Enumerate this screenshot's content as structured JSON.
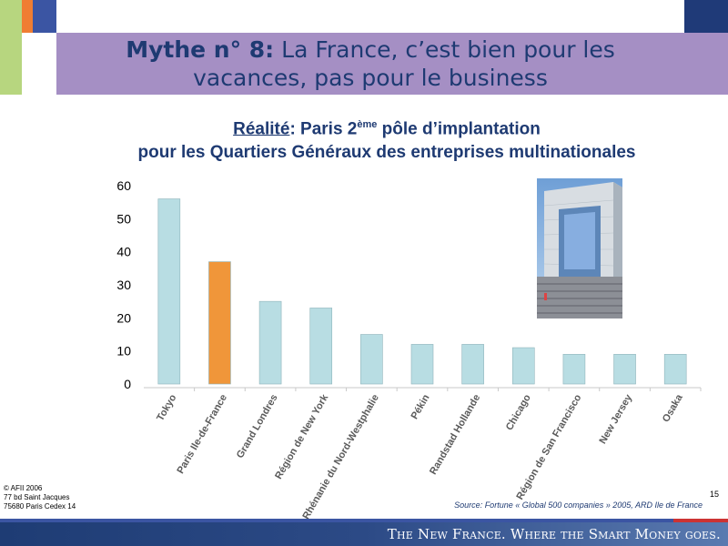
{
  "header": {
    "title_bold": "Mythe n° 8:",
    "title_rest": "La France, c’est bien pour les",
    "title_line2": "vacances, pas pour le business"
  },
  "subtitle": {
    "underlined": "Réalité",
    "line1_a": ": Paris 2",
    "superscript": "ème",
    "line1_b": " pôle d’implantation",
    "line2": "pour les Quartiers Généraux des entreprises multinationales"
  },
  "chart_data": {
    "type": "bar",
    "categories": [
      "Tokyo",
      "Paris Ile-de-France",
      "Grand Londres",
      "Région de New York",
      "Rhénanie du Nord-Westphalie",
      "Pékin",
      "Randstad Hollande",
      "Chicago",
      "Région de San Francisco",
      "New Jersey",
      "Osaka"
    ],
    "values": [
      56,
      37,
      25,
      23,
      15,
      12,
      12,
      11,
      9,
      9,
      9
    ],
    "ylim": [
      0,
      60
    ],
    "yticks": [
      "0",
      "10",
      "20",
      "30",
      "40",
      "50",
      "60"
    ],
    "highlight_index": 1,
    "colors": {
      "default": "#b8dde3",
      "highlight": "#f0963a",
      "stroke": "#8fb4bb"
    },
    "grid": false,
    "title": "",
    "xlabel": "",
    "ylabel": ""
  },
  "photo": {
    "icon": "grande-arche-photo"
  },
  "footer": {
    "copyright_lines": [
      "© AFII 2006",
      "77 bd Saint Jacques",
      "75680 Paris Cedex 14"
    ],
    "source": "Source: Fortune « Global 500 companies » 2005, ARD Ile de France",
    "page_number": "15",
    "tagline": "The New France. Where the Smart Money goes."
  }
}
